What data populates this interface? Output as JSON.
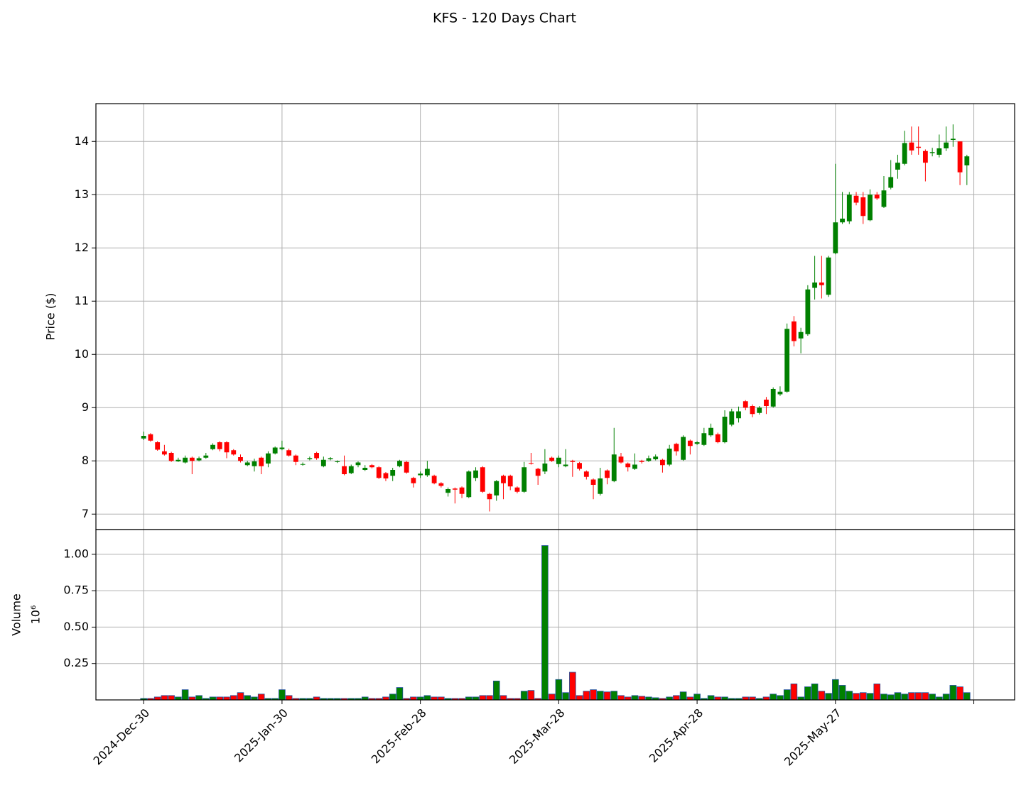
{
  "chart_data": {
    "type": "candlestick",
    "title": "KFS - 120 Days Chart",
    "ylabel": "Price ($)",
    "volume_label": "Volume",
    "volume_unit": "10⁶",
    "up_color": "#008000",
    "down_color": "#ff0000",
    "grid": true,
    "xlim": [
      -6.9,
      125.9
    ],
    "xticks": [
      {
        "value": 0,
        "label": "2024-Dec-30"
      },
      {
        "value": 20,
        "label": "2025-Jan-30"
      },
      {
        "value": 40,
        "label": "2025-Feb-28"
      },
      {
        "value": 60,
        "label": "2025-Mar-28"
      },
      {
        "value": 80,
        "label": "2025-Apr-28"
      },
      {
        "value": 100,
        "label": "2025-May-27"
      },
      {
        "value": 120,
        "label": null
      }
    ],
    "ylim": [
      6.71,
      14.71
    ],
    "yticks": [
      7,
      8,
      9,
      10,
      11,
      12,
      13,
      14
    ],
    "volume_ylim": [
      0,
      1.17
    ],
    "volume_yticks": [
      0.25,
      {
        "value": 0.5,
        "label": "0.50"
      },
      0.75,
      {
        "value": 1.0,
        "label": "1.00"
      }
    ],
    "open": [
      8.42,
      8.5,
      8.35,
      8.18,
      8.15,
      7.99,
      7.97,
      8.06,
      8.01,
      8.06,
      8.22,
      8.35,
      8.35,
      8.2,
      8.07,
      7.92,
      7.9,
      8.06,
      7.95,
      8.14,
      8.22,
      8.2,
      8.1,
      7.93,
      8.03,
      8.15,
      7.9,
      8.03,
      7.98,
      7.9,
      7.77,
      7.92,
      7.83,
      7.92,
      7.88,
      7.77,
      7.72,
      7.9,
      7.98,
      7.68,
      7.73,
      7.73,
      7.72,
      7.58,
      7.4,
      7.48,
      7.5,
      7.32,
      7.68,
      7.88,
      7.38,
      7.35,
      7.72,
      7.72,
      7.5,
      7.42,
      7.96,
      7.85,
      7.8,
      8.06,
      7.94,
      7.9,
      8.0,
      7.96,
      7.8,
      7.65,
      7.38,
      7.82,
      7.62,
      8.08,
      7.95,
      7.85,
      8.0,
      8.0,
      8.03,
      8.02,
      7.93,
      8.32,
      8.02,
      8.38,
      8.32,
      8.3,
      8.48,
      8.5,
      8.35,
      8.68,
      8.8,
      9.12,
      9.03,
      8.9,
      9.15,
      9.02,
      9.25,
      9.3,
      10.62,
      10.3,
      10.38,
      11.25,
      11.35,
      11.12,
      11.9,
      12.48,
      12.5,
      12.98,
      12.95,
      12.52,
      13.0,
      12.77,
      13.13,
      13.47,
      13.58,
      13.98,
      13.9,
      13.82,
      13.78,
      13.75,
      13.87,
      14.03,
      14.0,
      13.55
    ],
    "high": [
      8.55,
      8.52,
      8.37,
      8.3,
      8.17,
      8.06,
      8.1,
      8.08,
      8.08,
      8.15,
      8.33,
      8.37,
      8.37,
      8.22,
      8.12,
      8.0,
      8.04,
      8.08,
      8.18,
      8.27,
      8.38,
      8.23,
      8.12,
      7.97,
      8.08,
      8.17,
      8.08,
      8.07,
      8.01,
      8.1,
      7.93,
      7.99,
      7.92,
      7.94,
      7.9,
      7.79,
      7.87,
      8.02,
      8.0,
      7.7,
      7.8,
      8.0,
      7.74,
      7.6,
      7.5,
      7.5,
      7.52,
      7.82,
      7.88,
      7.9,
      7.4,
      7.64,
      7.74,
      7.74,
      7.52,
      7.98,
      8.15,
      7.87,
      8.22,
      8.08,
      8.1,
      8.22,
      8.02,
      7.98,
      7.82,
      7.67,
      7.87,
      7.84,
      8.62,
      8.15,
      7.97,
      8.14,
      8.02,
      8.1,
      8.12,
      8.04,
      8.3,
      8.34,
      8.48,
      8.4,
      8.37,
      8.62,
      8.7,
      8.53,
      8.95,
      8.98,
      9.02,
      9.14,
      9.06,
      9.03,
      9.2,
      9.38,
      9.4,
      10.58,
      10.72,
      10.5,
      11.3,
      11.85,
      11.85,
      11.85,
      13.58,
      13.05,
      13.05,
      13.05,
      13.05,
      13.1,
      13.05,
      13.35,
      13.65,
      13.75,
      14.2,
      14.28,
      14.28,
      13.85,
      13.88,
      14.13,
      14.28,
      14.32,
      14.0,
      13.75
    ],
    "low": [
      8.39,
      8.36,
      8.19,
      8.1,
      7.98,
      7.98,
      7.95,
      7.75,
      7.99,
      8.04,
      8.2,
      8.18,
      8.05,
      8.1,
      7.97,
      7.9,
      7.8,
      7.75,
      7.88,
      8.12,
      8.2,
      8.08,
      7.92,
      7.91,
      8.01,
      8.02,
      7.88,
      8.01,
      7.96,
      7.73,
      7.75,
      7.88,
      7.81,
      7.86,
      7.66,
      7.62,
      7.62,
      7.88,
      7.76,
      7.5,
      7.68,
      7.7,
      7.56,
      7.5,
      7.33,
      7.2,
      7.3,
      7.3,
      7.62,
      7.4,
      7.05,
      7.25,
      7.28,
      7.45,
      7.39,
      7.4,
      7.93,
      7.55,
      7.75,
      7.98,
      7.88,
      7.88,
      7.7,
      7.82,
      7.65,
      7.28,
      7.35,
      7.56,
      7.6,
      7.95,
      7.8,
      7.83,
      7.95,
      7.98,
      8.01,
      7.78,
      7.9,
      8.1,
      8.0,
      8.12,
      8.3,
      8.28,
      8.45,
      8.33,
      8.33,
      8.65,
      8.72,
      8.95,
      8.82,
      8.87,
      8.88,
      9.0,
      9.22,
      9.28,
      10.15,
      10.02,
      10.35,
      11.03,
      11.05,
      11.08,
      11.88,
      12.45,
      12.45,
      12.8,
      12.45,
      12.5,
      12.9,
      12.75,
      13.1,
      13.3,
      13.55,
      13.75,
      13.75,
      13.25,
      13.72,
      13.7,
      13.82,
      13.9,
      13.18,
      13.18
    ],
    "close": [
      8.47,
      8.38,
      8.21,
      8.12,
      8.0,
      8.02,
      8.06,
      8.0,
      8.05,
      8.1,
      8.3,
      8.22,
      8.16,
      8.12,
      8.0,
      7.97,
      7.99,
      7.9,
      8.14,
      8.25,
      8.25,
      8.1,
      7.98,
      7.94,
      8.05,
      8.05,
      8.02,
      8.05,
      7.99,
      7.75,
      7.9,
      7.97,
      7.87,
      7.88,
      7.68,
      7.67,
      7.83,
      8.0,
      7.78,
      7.58,
      7.76,
      7.85,
      7.58,
      7.53,
      7.47,
      7.46,
      7.38,
      7.8,
      7.82,
      7.42,
      7.28,
      7.62,
      7.58,
      7.52,
      7.42,
      7.88,
      7.95,
      7.72,
      7.95,
      8.0,
      8.06,
      7.93,
      7.98,
      7.85,
      7.7,
      7.55,
      7.67,
      7.68,
      8.12,
      7.97,
      7.88,
      7.93,
      7.98,
      8.05,
      8.08,
      7.92,
      8.23,
      8.18,
      8.45,
      8.28,
      8.35,
      8.52,
      8.62,
      8.35,
      8.83,
      8.93,
      8.93,
      9.0,
      8.88,
      9.0,
      9.03,
      9.35,
      9.3,
      10.48,
      10.25,
      10.42,
      11.22,
      11.35,
      11.3,
      11.82,
      12.48,
      12.55,
      13.0,
      12.85,
      12.6,
      13.0,
      12.93,
      13.08,
      13.33,
      13.6,
      13.97,
      13.83,
      13.88,
      13.6,
      13.8,
      13.87,
      13.98,
      14.05,
      13.42,
      13.72
    ],
    "volume": [
      0.01,
      0.01,
      0.02,
      0.03,
      0.03,
      0.02,
      0.07,
      0.02,
      0.03,
      0.01,
      0.02,
      0.02,
      0.02,
      0.03,
      0.05,
      0.03,
      0.02,
      0.04,
      0.01,
      0.01,
      0.07,
      0.03,
      0.01,
      0.01,
      0.01,
      0.02,
      0.01,
      0.01,
      0.01,
      0.01,
      0.01,
      0.01,
      0.02,
      0.01,
      0.01,
      0.02,
      0.04,
      0.085,
      0.01,
      0.02,
      0.02,
      0.03,
      0.02,
      0.02,
      0.01,
      0.01,
      0.01,
      0.02,
      0.02,
      0.03,
      0.03,
      0.13,
      0.03,
      0.01,
      0.01,
      0.06,
      0.065,
      0.01,
      1.06,
      0.04,
      0.14,
      0.05,
      0.19,
      0.03,
      0.06,
      0.07,
      0.06,
      0.055,
      0.06,
      0.03,
      0.02,
      0.03,
      0.025,
      0.02,
      0.015,
      0.01,
      0.02,
      0.03,
      0.055,
      0.02,
      0.04,
      0.01,
      0.03,
      0.02,
      0.02,
      0.01,
      0.01,
      0.02,
      0.02,
      0.01,
      0.02,
      0.04,
      0.03,
      0.07,
      0.11,
      0.02,
      0.09,
      0.11,
      0.06,
      0.045,
      0.14,
      0.1,
      0.06,
      0.045,
      0.05,
      0.045,
      0.11,
      0.04,
      0.035,
      0.05,
      0.04,
      0.05,
      0.05,
      0.05,
      0.04,
      0.02,
      0.04,
      0.1,
      0.09,
      0.05
    ]
  }
}
